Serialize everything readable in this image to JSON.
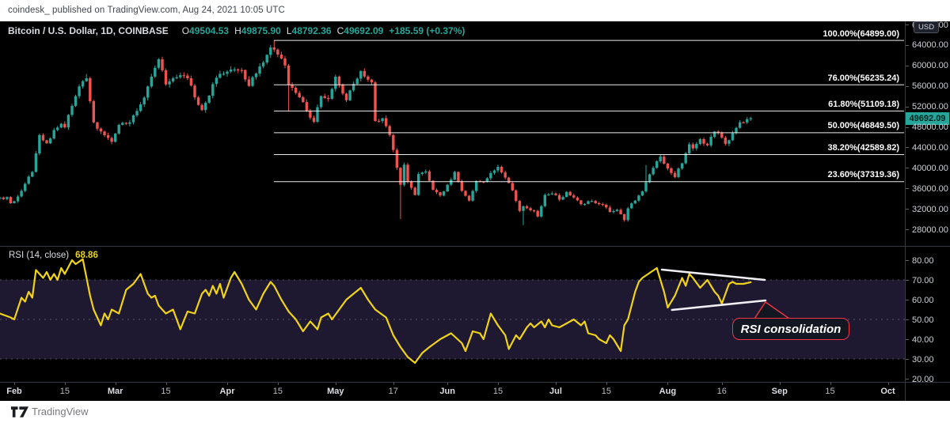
{
  "attribution": "coindesk_ published on TradingView.com, Aug 24, 2021 10:05 UTC",
  "legend": {
    "title": "Bitcoin / U.S. Dollar, 1D, COINBASE",
    "o_label": "O",
    "o": "49504.53",
    "h_label": "H",
    "h": "49875.90",
    "l_label": "L",
    "l": "48792.36",
    "c_label": "C",
    "c": "49692.09",
    "change": "+185.59 (+0.37%)"
  },
  "price_axis": {
    "unit_button": "USD",
    "labels": [
      68000,
      64000,
      60000,
      56000,
      52000,
      48000,
      44000,
      40000,
      36000,
      32000,
      28000
    ],
    "last_price": "49692.09"
  },
  "fib_levels": [
    {
      "label": "100.00%(64899.00)",
      "value": 64899.0
    },
    {
      "label": "76.00%(56235.24)",
      "value": 56235.24
    },
    {
      "label": "61.80%(51109.18)",
      "value": 51109.18
    },
    {
      "label": "50.00%(46849.50)",
      "value": 46849.5
    },
    {
      "label": "38.20%(42589.82)",
      "value": 42589.82
    },
    {
      "label": "23.60%(37319.36)",
      "value": 37319.36
    }
  ],
  "rsi_header": {
    "title": "RSI (14, close)",
    "value": "68.86"
  },
  "rsi_axis": {
    "labels": [
      80,
      70,
      60,
      50,
      40,
      30,
      20
    ]
  },
  "time_axis": [
    {
      "label": "Feb",
      "day": 0,
      "month": true
    },
    {
      "label": "15",
      "day": 14,
      "month": false
    },
    {
      "label": "Mar",
      "day": 28,
      "month": true
    },
    {
      "label": "15",
      "day": 42,
      "month": false
    },
    {
      "label": "Apr",
      "day": 59,
      "month": true
    },
    {
      "label": "15",
      "day": 73,
      "month": false
    },
    {
      "label": "May",
      "day": 89,
      "month": true
    },
    {
      "label": "17",
      "day": 105,
      "month": false
    },
    {
      "label": "Jun",
      "day": 120,
      "month": true
    },
    {
      "label": "15",
      "day": 134,
      "month": false
    },
    {
      "label": "Jul",
      "day": 150,
      "month": true
    },
    {
      "label": "15",
      "day": 164,
      "month": false
    },
    {
      "label": "Aug",
      "day": 181,
      "month": true
    },
    {
      "label": "16",
      "day": 196,
      "month": false
    },
    {
      "label": "Sep",
      "day": 212,
      "month": true
    },
    {
      "label": "15",
      "day": 226,
      "month": false
    },
    {
      "label": "Oct",
      "day": 242,
      "month": true
    }
  ],
  "annotation": {
    "text": "RSI consolidation"
  },
  "footer": {
    "brand": "TradingView"
  },
  "colors": {
    "up": "#26a69a",
    "down": "#ef5350",
    "rsi_line": "#f0d318",
    "fib_line": "#ffffff",
    "annotation_border": "#f23645",
    "badge_bg": "#26a69a",
    "band_bg": "#1e1830",
    "axis_text": "#cdd0d6"
  },
  "chart_data": [
    {
      "type": "candlestick",
      "title": "Bitcoin / U.S. Dollar, 1D, COINBASE",
      "x_unit": "days since Feb 1 2021 (visible range Jan 28 - Oct 3)",
      "ylim": [
        25500,
        68000
      ],
      "grid": false,
      "last_close": 49692.09,
      "close_keyframes": [
        [
          -4,
          34200
        ],
        [
          -3,
          33900
        ],
        [
          -2,
          34300
        ],
        [
          -1,
          33100
        ],
        [
          0,
          33500
        ],
        [
          2,
          35500
        ],
        [
          3,
          36900
        ],
        [
          5,
          39200
        ],
        [
          7,
          46400
        ],
        [
          9,
          44800
        ],
        [
          11,
          47400
        ],
        [
          13,
          48600
        ],
        [
          14,
          47900
        ],
        [
          16,
          52100
        ],
        [
          18,
          55900
        ],
        [
          20,
          57500
        ],
        [
          22,
          48900
        ],
        [
          24,
          47100
        ],
        [
          27,
          45100
        ],
        [
          29,
          48400
        ],
        [
          32,
          48900
        ],
        [
          35,
          52400
        ],
        [
          37,
          55900
        ],
        [
          40,
          61200
        ],
        [
          42,
          56300
        ],
        [
          43,
          56900
        ],
        [
          46,
          58100
        ],
        [
          48,
          57500
        ],
        [
          51,
          52300
        ],
        [
          52,
          51300
        ],
        [
          56,
          57600
        ],
        [
          59,
          58800
        ],
        [
          63,
          59100
        ],
        [
          65,
          56000
        ],
        [
          68,
          59800
        ],
        [
          71,
          63500
        ],
        [
          72,
          63100
        ],
        [
          75,
          60000
        ],
        [
          76,
          56200
        ],
        [
          79,
          53800
        ],
        [
          81,
          51100
        ],
        [
          83,
          49000
        ],
        [
          85,
          54000
        ],
        [
          87,
          53500
        ],
        [
          89,
          57800
        ],
        [
          92,
          53200
        ],
        [
          94,
          56400
        ],
        [
          96,
          58900
        ],
        [
          99,
          56700
        ],
        [
          100,
          49150
        ],
        [
          102,
          49700
        ],
        [
          104,
          46400
        ],
        [
          105,
          43500
        ],
        [
          107,
          36700
        ],
        [
          108,
          40600
        ],
        [
          109,
          37300
        ],
        [
          111,
          34700
        ],
        [
          112,
          38800
        ],
        [
          114,
          39300
        ],
        [
          116,
          35700
        ],
        [
          118,
          34600
        ],
        [
          120,
          36700
        ],
        [
          122,
          39200
        ],
        [
          124,
          35500
        ],
        [
          126,
          33600
        ],
        [
          128,
          37400
        ],
        [
          130,
          37300
        ],
        [
          132,
          39000
        ],
        [
          134,
          40200
        ],
        [
          136,
          38100
        ],
        [
          138,
          35600
        ],
        [
          140,
          31600
        ],
        [
          141,
          32500
        ],
        [
          144,
          31600
        ],
        [
          145,
          30500
        ],
        [
          147,
          34700
        ],
        [
          149,
          35000
        ],
        [
          151,
          33800
        ],
        [
          153,
          35300
        ],
        [
          155,
          34200
        ],
        [
          157,
          32900
        ],
        [
          159,
          33500
        ],
        [
          161,
          33100
        ],
        [
          163,
          32800
        ],
        [
          165,
          31400
        ],
        [
          167,
          31800
        ],
        [
          169,
          29800
        ],
        [
          170,
          32100
        ],
        [
          172,
          33600
        ],
        [
          174,
          35400
        ],
        [
          175,
          37200
        ],
        [
          177,
          40000
        ],
        [
          179,
          42200
        ],
        [
          181,
          39900
        ],
        [
          183,
          38200
        ],
        [
          185,
          40900
        ],
        [
          187,
          44600
        ],
        [
          188,
          43800
        ],
        [
          190,
          45600
        ],
        [
          192,
          44400
        ],
        [
          194,
          47100
        ],
        [
          196,
          45900
        ],
        [
          197,
          44700
        ],
        [
          199,
          46800
        ],
        [
          201,
          48900
        ],
        [
          202,
          48870
        ],
        [
          203,
          49500
        ],
        [
          204,
          49692.09
        ]
      ],
      "wick_overrides": {
        "20": {
          "high": 58350
        },
        "72": {
          "high": 64899
        },
        "76": {
          "low": 51000
        },
        "107": {
          "low": 30000
        },
        "141": {
          "low": 28800
        },
        "175": {
          "high": 40550
        }
      },
      "fib_retracement": {
        "start_day": 72,
        "levels": [
          64899.0,
          56235.24,
          51109.18,
          46849.5,
          42589.82,
          37319.36
        ]
      }
    },
    {
      "type": "line",
      "title": "RSI (14, close)",
      "last_value": 68.86,
      "ylim": [
        20,
        80
      ],
      "dashed_levels": [
        70,
        50,
        30
      ],
      "band": [
        30,
        70
      ],
      "points": [
        [
          -4,
          53
        ],
        [
          -1,
          51
        ],
        [
          0,
          50
        ],
        [
          2,
          61
        ],
        [
          3,
          59
        ],
        [
          4,
          64
        ],
        [
          5,
          61
        ],
        [
          6,
          75
        ],
        [
          8,
          71
        ],
        [
          9,
          74
        ],
        [
          10,
          70
        ],
        [
          11,
          73
        ],
        [
          12,
          70
        ],
        [
          13,
          76
        ],
        [
          14,
          73
        ],
        [
          16,
          80
        ],
        [
          17,
          78
        ],
        [
          19,
          80.5
        ],
        [
          21,
          62
        ],
        [
          22,
          55
        ],
        [
          24,
          47
        ],
        [
          25,
          53
        ],
        [
          26,
          50
        ],
        [
          27,
          55
        ],
        [
          29,
          53
        ],
        [
          31,
          65
        ],
        [
          33,
          68
        ],
        [
          35,
          73
        ],
        [
          37,
          63
        ],
        [
          38,
          61
        ],
        [
          39,
          62
        ],
        [
          40,
          57
        ],
        [
          42,
          53
        ],
        [
          44,
          55
        ],
        [
          45,
          50
        ],
        [
          46,
          45
        ],
        [
          48,
          54
        ],
        [
          50,
          53
        ],
        [
          52,
          63
        ],
        [
          53,
          65
        ],
        [
          54,
          62
        ],
        [
          55,
          67
        ],
        [
          56,
          63
        ],
        [
          57,
          68
        ],
        [
          58,
          61
        ],
        [
          60,
          71
        ],
        [
          61,
          74
        ],
        [
          63,
          68
        ],
        [
          65,
          60
        ],
        [
          67,
          55
        ],
        [
          69,
          63
        ],
        [
          71,
          69
        ],
        [
          72,
          67
        ],
        [
          74,
          60
        ],
        [
          76,
          54
        ],
        [
          78,
          50
        ],
        [
          80,
          44
        ],
        [
          82,
          49
        ],
        [
          84,
          45
        ],
        [
          85,
          51
        ],
        [
          87,
          53
        ],
        [
          88,
          50
        ],
        [
          90,
          55
        ],
        [
          92,
          60
        ],
        [
          94,
          63
        ],
        [
          96,
          66
        ],
        [
          98,
          60
        ],
        [
          100,
          55
        ],
        [
          103,
          51
        ],
        [
          105,
          42
        ],
        [
          107,
          36
        ],
        [
          109,
          31
        ],
        [
          111,
          28
        ],
        [
          113,
          33
        ],
        [
          115,
          36
        ],
        [
          118,
          40
        ],
        [
          121,
          43
        ],
        [
          124,
          38
        ],
        [
          125,
          34
        ],
        [
          127,
          44
        ],
        [
          129,
          43
        ],
        [
          130,
          40
        ],
        [
          132,
          53
        ],
        [
          134,
          47
        ],
        [
          136,
          42
        ],
        [
          137,
          35
        ],
        [
          139,
          42
        ],
        [
          140,
          40
        ],
        [
          142,
          46
        ],
        [
          143,
          48
        ],
        [
          144,
          46
        ],
        [
          146,
          49
        ],
        [
          147,
          46
        ],
        [
          148,
          50
        ],
        [
          149,
          47
        ],
        [
          151,
          46
        ],
        [
          153,
          48
        ],
        [
          155,
          50
        ],
        [
          157,
          47
        ],
        [
          158,
          49
        ],
        [
          159,
          43
        ],
        [
          161,
          42
        ],
        [
          162,
          40
        ],
        [
          164,
          38
        ],
        [
          165,
          42
        ],
        [
          166,
          40
        ],
        [
          168,
          34
        ],
        [
          169,
          47
        ],
        [
          170,
          50
        ],
        [
          172,
          64
        ],
        [
          173,
          69
        ],
        [
          174,
          71
        ],
        [
          178,
          76
        ],
        [
          179,
          70
        ],
        [
          180,
          64
        ],
        [
          181,
          56
        ],
        [
          183,
          62
        ],
        [
          185,
          71
        ],
        [
          186,
          67
        ],
        [
          187,
          73
        ],
        [
          188,
          71
        ],
        [
          190,
          66
        ],
        [
          191,
          68
        ],
        [
          192,
          70
        ],
        [
          194,
          64
        ],
        [
          195,
          62
        ],
        [
          196,
          58
        ],
        [
          198,
          68
        ],
        [
          199,
          69
        ],
        [
          200,
          68
        ],
        [
          202,
          68
        ],
        [
          204,
          68.86
        ]
      ],
      "trendlines": [
        {
          "name": "upper",
          "from": [
            179.4,
            75.2
          ],
          "to": [
            207.9,
            70.0
          ]
        },
        {
          "name": "lower",
          "from": [
            182.2,
            54.8
          ],
          "to": [
            208.1,
            59.6
          ]
        }
      ],
      "annotation": "RSI consolidation"
    }
  ]
}
